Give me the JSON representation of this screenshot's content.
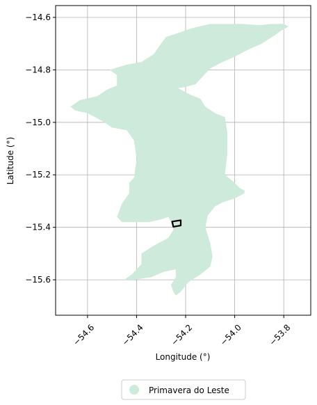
{
  "chart_data": {
    "type": "map",
    "xlabel": "Longitude (°)",
    "ylabel": "Latitude (°)",
    "xlim": [
      -54.73,
      -53.69
    ],
    "ylim": [
      -15.735,
      -14.555
    ],
    "xticks": [
      -54.6,
      -54.4,
      -54.2,
      -54.0,
      -53.8
    ],
    "xtick_labels": [
      "−54.6",
      "−54.4",
      "−54.2",
      "−54.0",
      "−53.8"
    ],
    "yticks": [
      -14.6,
      -14.8,
      -15.0,
      -15.2,
      -15.4,
      -15.6
    ],
    "ytick_labels": [
      "−14.6",
      "−14.8",
      "−15.0",
      "−15.2",
      "−15.4",
      "−15.6"
    ],
    "grid": true,
    "legend_position": "bottom-center",
    "series": [
      {
        "name": "Primavera do Leste",
        "color": "#cdeadb",
        "kind": "region",
        "polygon": [
          [
            -54.28,
            -14.675
          ],
          [
            -54.17,
            -14.64
          ],
          [
            -54.1,
            -14.625
          ],
          [
            -54.05,
            -14.625
          ],
          [
            -53.97,
            -14.625
          ],
          [
            -53.9,
            -14.63
          ],
          [
            -53.85,
            -14.625
          ],
          [
            -53.8,
            -14.625
          ],
          [
            -53.78,
            -14.635
          ],
          [
            -53.81,
            -14.65
          ],
          [
            -53.84,
            -14.67
          ],
          [
            -53.89,
            -14.7
          ],
          [
            -53.95,
            -14.725
          ],
          [
            -54.0,
            -14.75
          ],
          [
            -54.05,
            -14.77
          ],
          [
            -54.1,
            -14.795
          ],
          [
            -54.13,
            -14.825
          ],
          [
            -54.16,
            -14.855
          ],
          [
            -54.2,
            -14.865
          ],
          [
            -54.23,
            -14.87
          ],
          [
            -54.18,
            -14.895
          ],
          [
            -54.14,
            -14.91
          ],
          [
            -54.12,
            -14.94
          ],
          [
            -54.08,
            -14.965
          ],
          [
            -54.04,
            -14.98
          ],
          [
            -54.03,
            -15.04
          ],
          [
            -54.03,
            -15.12
          ],
          [
            -54.04,
            -15.2
          ],
          [
            -54.0,
            -15.23
          ],
          [
            -53.98,
            -15.25
          ],
          [
            -53.96,
            -15.26
          ],
          [
            -53.96,
            -15.27
          ],
          [
            -54.0,
            -15.29
          ],
          [
            -54.05,
            -15.305
          ],
          [
            -54.08,
            -15.32
          ],
          [
            -54.11,
            -15.355
          ],
          [
            -54.12,
            -15.4
          ],
          [
            -54.1,
            -15.46
          ],
          [
            -54.09,
            -15.51
          ],
          [
            -54.1,
            -15.55
          ],
          [
            -54.14,
            -15.58
          ],
          [
            -54.19,
            -15.61
          ],
          [
            -54.22,
            -15.645
          ],
          [
            -54.24,
            -15.66
          ],
          [
            -54.25,
            -15.645
          ],
          [
            -54.26,
            -15.62
          ],
          [
            -54.24,
            -15.59
          ],
          [
            -54.24,
            -15.56
          ],
          [
            -54.29,
            -15.57
          ],
          [
            -54.34,
            -15.59
          ],
          [
            -54.41,
            -15.6
          ],
          [
            -54.45,
            -15.6
          ],
          [
            -54.42,
            -15.58
          ],
          [
            -54.38,
            -15.54
          ],
          [
            -54.38,
            -15.5
          ],
          [
            -54.33,
            -15.47
          ],
          [
            -54.27,
            -15.44
          ],
          [
            -54.25,
            -15.41
          ],
          [
            -54.26,
            -15.38
          ],
          [
            -54.27,
            -15.36
          ],
          [
            -54.3,
            -15.37
          ],
          [
            -54.35,
            -15.38
          ],
          [
            -54.41,
            -15.38
          ],
          [
            -54.46,
            -15.38
          ],
          [
            -54.48,
            -15.36
          ],
          [
            -54.46,
            -15.31
          ],
          [
            -54.43,
            -15.27
          ],
          [
            -54.43,
            -15.23
          ],
          [
            -54.41,
            -15.21
          ],
          [
            -54.4,
            -15.14
          ],
          [
            -54.41,
            -15.07
          ],
          [
            -54.44,
            -15.03
          ],
          [
            -54.5,
            -15.02
          ],
          [
            -54.53,
            -15.0
          ],
          [
            -54.57,
            -14.98
          ],
          [
            -54.6,
            -14.965
          ],
          [
            -54.65,
            -14.955
          ],
          [
            -54.67,
            -14.94
          ],
          [
            -54.63,
            -14.915
          ],
          [
            -54.56,
            -14.9
          ],
          [
            -54.52,
            -14.875
          ],
          [
            -54.48,
            -14.86
          ],
          [
            -54.48,
            -14.82
          ],
          [
            -54.51,
            -14.8
          ],
          [
            -54.44,
            -14.78
          ],
          [
            -54.38,
            -14.77
          ],
          [
            -54.33,
            -14.74
          ],
          [
            -54.3,
            -14.7
          ]
        ]
      },
      {
        "name": "",
        "color": "#000000",
        "kind": "outline",
        "polygon": [
          [
            -54.255,
            -15.378
          ],
          [
            -54.22,
            -15.373
          ],
          [
            -54.22,
            -15.393
          ],
          [
            -54.25,
            -15.398
          ],
          [
            -54.255,
            -15.378
          ]
        ]
      }
    ]
  },
  "legend": {
    "label": "Primavera do Leste",
    "marker_color": "#cdeadb"
  }
}
